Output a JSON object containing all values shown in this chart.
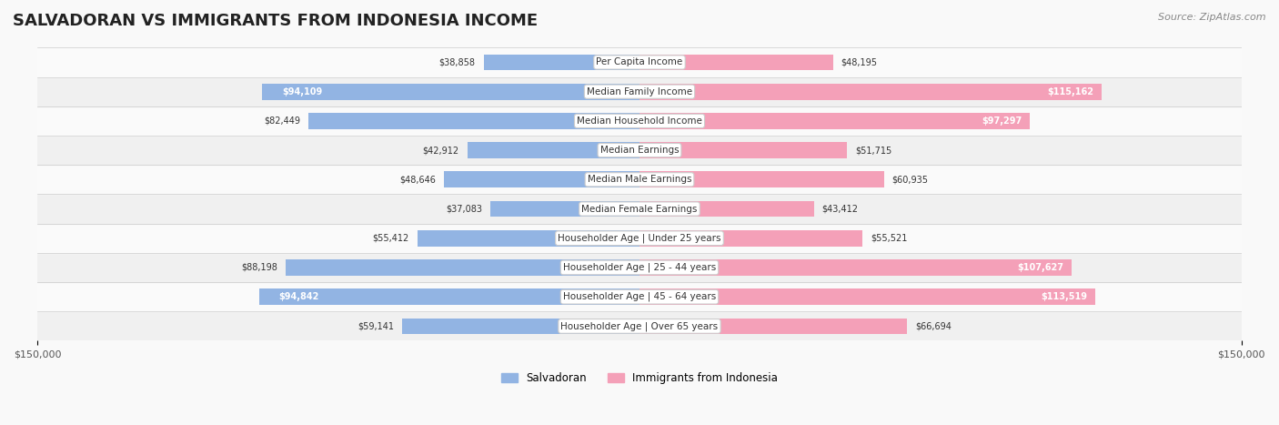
{
  "title": "SALVADORAN VS IMMIGRANTS FROM INDONESIA INCOME",
  "source": "Source: ZipAtlas.com",
  "categories": [
    "Per Capita Income",
    "Median Family Income",
    "Median Household Income",
    "Median Earnings",
    "Median Male Earnings",
    "Median Female Earnings",
    "Householder Age | Under 25 years",
    "Householder Age | 25 - 44 years",
    "Householder Age | 45 - 64 years",
    "Householder Age | Over 65 years"
  ],
  "salvadoran_values": [
    38858,
    94109,
    82449,
    42912,
    48646,
    37083,
    55412,
    88198,
    94842,
    59141
  ],
  "indonesia_values": [
    48195,
    115162,
    97297,
    51715,
    60935,
    43412,
    55521,
    107627,
    113519,
    66694
  ],
  "salvadoran_labels": [
    "$38,858",
    "$94,109",
    "$82,449",
    "$42,912",
    "$48,646",
    "$37,083",
    "$55,412",
    "$88,198",
    "$94,842",
    "$59,141"
  ],
  "indonesia_labels": [
    "$48,195",
    "$115,162",
    "$97,297",
    "$51,715",
    "$60,935",
    "$43,412",
    "$55,521",
    "$107,627",
    "$113,519",
    "$66,694"
  ],
  "salvadoran_color": "#92b4e3",
  "indonesia_color": "#f4a0b8",
  "salvadoran_label_inside": [
    false,
    true,
    false,
    false,
    false,
    false,
    false,
    false,
    true,
    false
  ],
  "indonesia_label_inside": [
    false,
    true,
    true,
    false,
    false,
    false,
    false,
    true,
    true,
    false
  ],
  "max_value": 150000,
  "bar_height": 0.55,
  "background_color": "#f5f5f5",
  "row_bg_light": "#ffffff",
  "row_bg_dark": "#eeeeee",
  "legend_salvadoran": "Salvadoran",
  "legend_indonesia": "Immigrants from Indonesia"
}
